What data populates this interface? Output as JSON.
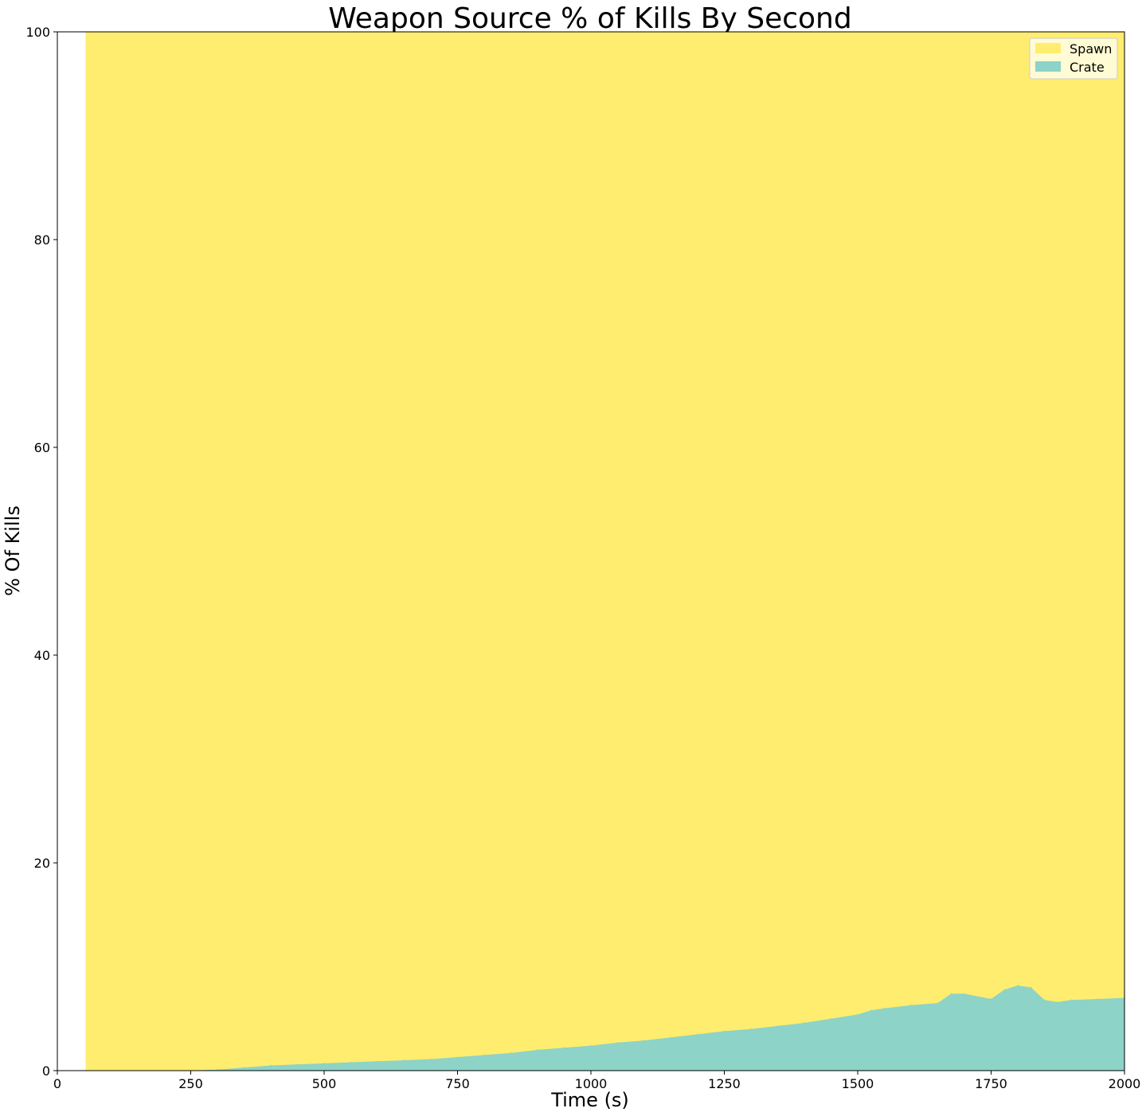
{
  "chart_data": {
    "type": "area",
    "stacked": true,
    "title": "Weapon Source % of Kills By Second",
    "xlabel": "Time (s)",
    "ylabel": "% Of Kills",
    "xlim": [
      0,
      2000
    ],
    "ylim": [
      0,
      100
    ],
    "xticks": [
      "0",
      "250",
      "500",
      "750",
      "1000",
      "1250",
      "1500",
      "1750",
      "2000"
    ],
    "yticks": [
      "0",
      "20",
      "40",
      "60",
      "80",
      "100"
    ],
    "data_start": 53,
    "series": [
      {
        "name": "Spawn",
        "color": "#ffed6f",
        "fill_to": 100
      },
      {
        "name": "Crate",
        "color": "#8dd3c7",
        "x": [
          53,
          250,
          300,
          350,
          400,
          450,
          500,
          550,
          600,
          650,
          700,
          750,
          800,
          850,
          900,
          950,
          1000,
          1050,
          1100,
          1150,
          1200,
          1250,
          1300,
          1350,
          1400,
          1450,
          1500,
          1525,
          1550,
          1600,
          1650,
          1675,
          1700,
          1750,
          1775,
          1800,
          1825,
          1850,
          1875,
          1900,
          1950,
          2000
        ],
        "values": [
          0,
          0,
          0.1,
          0.3,
          0.5,
          0.6,
          0.7,
          0.8,
          0.9,
          1.0,
          1.1,
          1.3,
          1.5,
          1.7,
          2.0,
          2.2,
          2.4,
          2.7,
          2.9,
          3.2,
          3.5,
          3.8,
          4.0,
          4.3,
          4.6,
          5.0,
          5.4,
          5.8,
          6.0,
          6.3,
          6.5,
          7.4,
          7.4,
          6.9,
          7.8,
          8.2,
          8.0,
          6.8,
          6.6,
          6.8,
          6.9,
          7.0
        ]
      }
    ],
    "legend": {
      "position": "top-right",
      "entries": [
        "Spawn",
        "Crate"
      ]
    }
  }
}
